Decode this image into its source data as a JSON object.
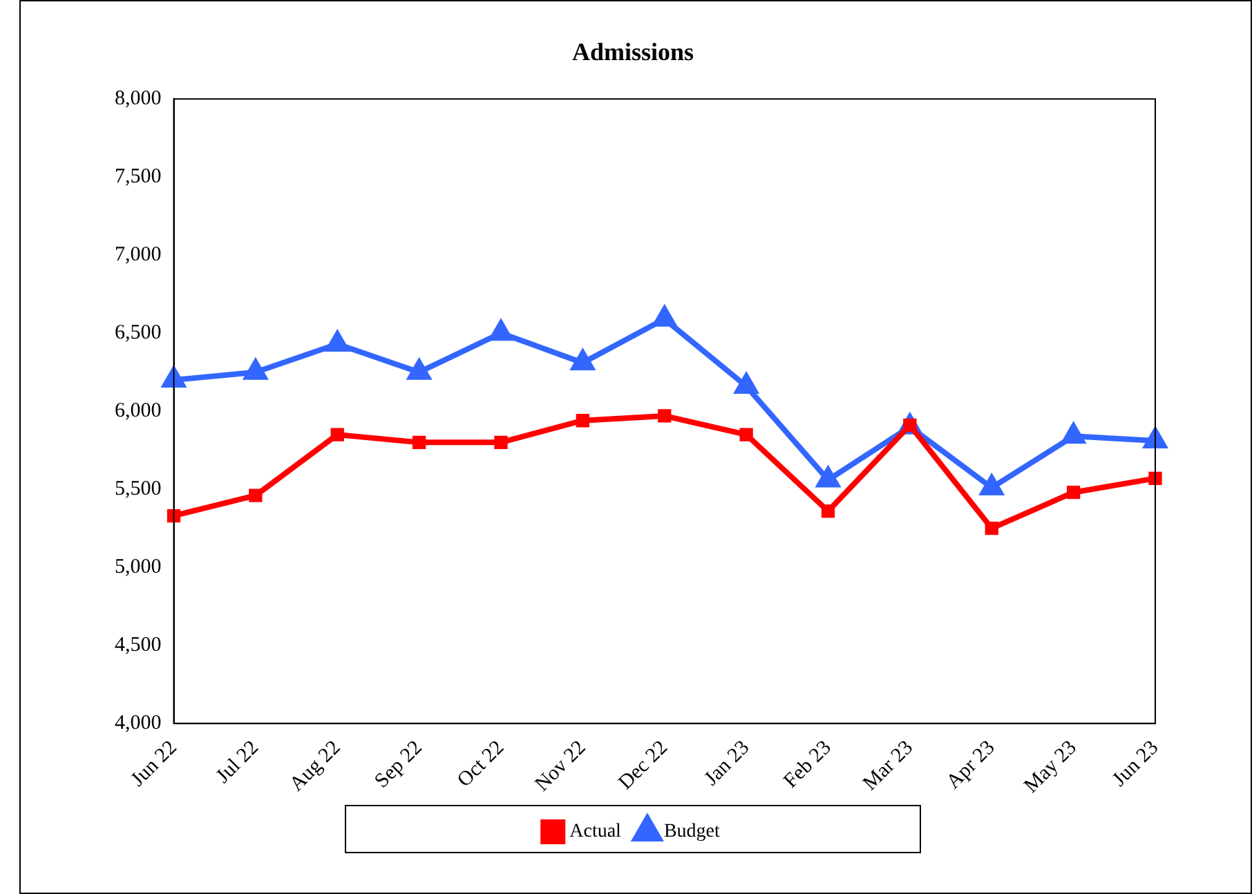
{
  "chart_data": {
    "type": "line",
    "title": "Admissions",
    "categories": [
      "Jun 22",
      "Jul 22",
      "Aug 22",
      "Sep 22",
      "Oct 22",
      "Nov 22",
      "Dec 22",
      "Jan 23",
      "Feb 23",
      "Mar 23",
      "Apr 23",
      "May 23",
      "Jun 23"
    ],
    "series": [
      {
        "name": "Actual",
        "color": "#ff0000",
        "marker": "square",
        "values": [
          5330,
          5460,
          5850,
          5800,
          5800,
          5940,
          5970,
          5850,
          5360,
          5910,
          5250,
          5480,
          5570
        ]
      },
      {
        "name": "Budget",
        "color": "#3366ff",
        "marker": "triangle",
        "values": [
          6200,
          6250,
          6430,
          6250,
          6500,
          6310,
          6590,
          6160,
          5560,
          5900,
          5510,
          5840,
          5810
        ]
      }
    ],
    "ylim": [
      4000,
      8000
    ],
    "yticks": [
      {
        "value": 4000,
        "label": "4,000"
      },
      {
        "value": 4500,
        "label": "4,500"
      },
      {
        "value": 5000,
        "label": "5,000"
      },
      {
        "value": 5500,
        "label": "5,500"
      },
      {
        "value": 6000,
        "label": "6,000"
      },
      {
        "value": 6500,
        "label": "6,500"
      },
      {
        "value": 7000,
        "label": "7,000"
      },
      {
        "value": 7500,
        "label": "7,500"
      },
      {
        "value": 8000,
        "label": "8,000"
      }
    ],
    "grid": false,
    "legend": "bottom"
  }
}
